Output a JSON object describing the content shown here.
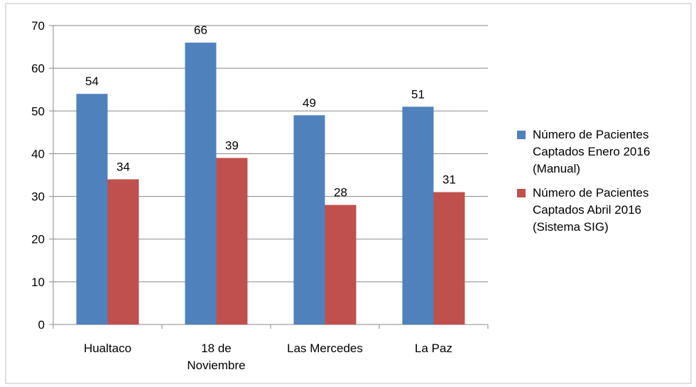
{
  "chart_data": {
    "type": "bar",
    "categories": [
      "Hualtaco",
      "18 de Noviembre",
      "Las Mercedes",
      "La Paz"
    ],
    "series": [
      {
        "name": "Número de Pacientes Captados Enero 2016 (Manual)",
        "color": "#4f81bd",
        "values": [
          54,
          66,
          49,
          51
        ]
      },
      {
        "name": "Número de Pacientes Captados Abril 2016 (Sistema SIG)",
        "color": "#c0504d",
        "values": [
          34,
          39,
          28,
          31
        ]
      }
    ],
    "ylim": [
      0,
      70
    ],
    "yticks": [
      0,
      10,
      20,
      30,
      40,
      50,
      60,
      70
    ],
    "grid": true,
    "legend": "right"
  }
}
